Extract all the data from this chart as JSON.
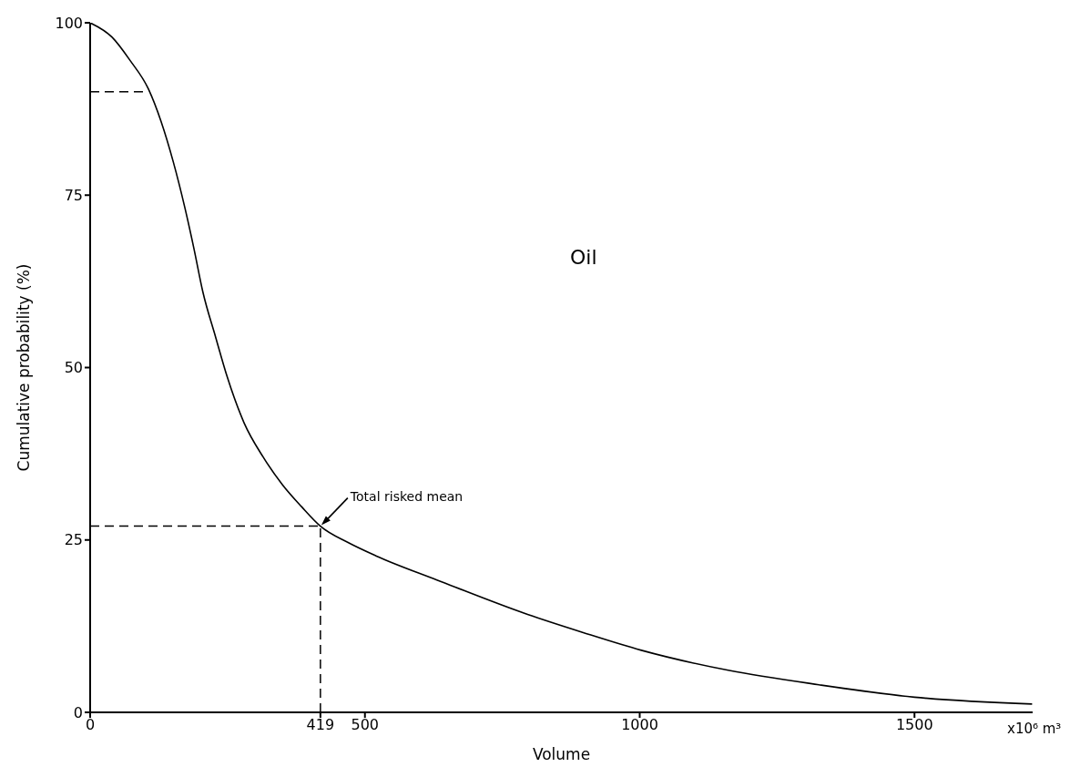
{
  "chart_data": {
    "type": "line",
    "title": "Oil",
    "xlabel": "Volume",
    "ylabel": "Cumulative probability (%)",
    "series": [
      {
        "color": "#000000",
        "x": [
          0,
          40,
          73,
          106,
          129,
          151,
          172,
          189,
          205,
          228,
          250,
          280,
          315,
          350,
          385,
          419,
          470,
          520,
          631,
          796,
          896,
          1003,
          1161,
          1326,
          1500,
          1714
        ],
        "values": [
          100,
          97.9,
          94.5,
          90.4,
          85.7,
          79.9,
          73.3,
          67.2,
          61,
          54.5,
          48.5,
          42,
          37,
          33,
          29.8,
          27,
          24.6,
          22.7,
          19.2,
          14.2,
          11.6,
          9,
          6.1,
          4,
          2.2,
          1.2
        ]
      },
      {
        "type": "line",
        "color": "#000000",
        "line_style": "dashed",
        "x": [
          0,
          106
        ],
        "values": [
          90,
          90
        ]
      }
    ],
    "xlim": [
      0,
      1715
    ],
    "xticks": [
      0,
      419,
      500,
      1000,
      1500
    ],
    "ylim": [
      0,
      100
    ],
    "yticks": [
      0,
      25,
      50,
      75,
      100
    ],
    "ref_lines": [
      {
        "axis": "y",
        "value": 27,
        "color": "#000000",
        "line_style": "dashed"
      },
      {
        "axis": "x",
        "value": 419,
        "color": "#000000",
        "line_style": "dashed"
      }
    ],
    "annotations": [
      {
        "text": "Total risked mean",
        "x": 419,
        "y": 27
      },
      "x10⁶ m³"
    ],
    "grid": false,
    "legend": false,
    "marker": "none",
    "line_style": "solid"
  }
}
